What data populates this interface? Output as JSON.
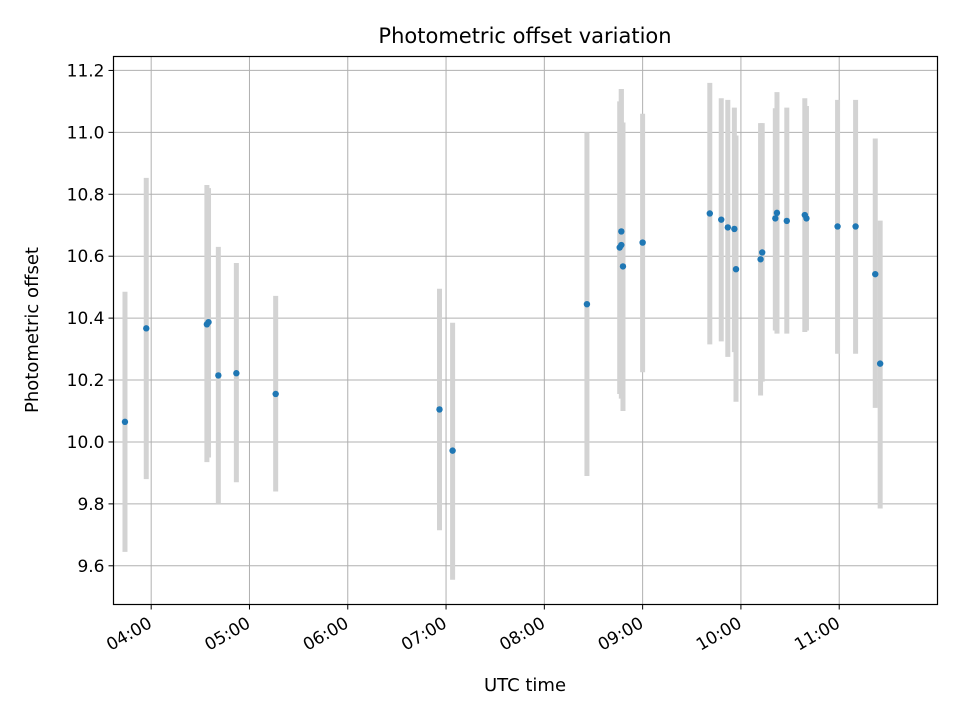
{
  "chart_data": {
    "type": "scatter",
    "title": "Photometric offset variation",
    "xlabel": "UTC time",
    "ylabel": "Photometric offset",
    "x_ticks": [
      "04:00",
      "05:00",
      "06:00",
      "07:00",
      "08:00",
      "09:00",
      "10:00",
      "11:00"
    ],
    "y_ticks": [
      "9.6",
      "9.8",
      "10.0",
      "10.2",
      "10.4",
      "10.6",
      "10.8",
      "11.0",
      "11.2"
    ],
    "xlim": [
      "03:37",
      "12:00"
    ],
    "ylim": [
      9.475,
      11.245
    ],
    "grid": true,
    "marker_color": "#1f77b4",
    "errorbar_color": "#d3d3d3",
    "points": [
      {
        "t": "03:44",
        "y": 10.065,
        "lo": 9.645,
        "hi": 10.485
      },
      {
        "t": "03:57",
        "y": 10.367,
        "lo": 9.88,
        "hi": 10.853
      },
      {
        "t": "04:34",
        "y": 10.38,
        "lo": 9.935,
        "hi": 10.83
      },
      {
        "t": "04:35",
        "y": 10.387,
        "lo": 9.95,
        "hi": 10.82
      },
      {
        "t": "04:41",
        "y": 10.215,
        "lo": 9.8,
        "hi": 10.63
      },
      {
        "t": "04:52",
        "y": 10.222,
        "lo": 9.87,
        "hi": 10.578
      },
      {
        "t": "05:16",
        "y": 10.155,
        "lo": 9.84,
        "hi": 10.472
      },
      {
        "t": "06:56",
        "y": 10.105,
        "lo": 9.715,
        "hi": 10.495
      },
      {
        "t": "07:04",
        "y": 9.972,
        "lo": 9.555,
        "hi": 10.385
      },
      {
        "t": "08:26",
        "y": 10.445,
        "lo": 9.89,
        "hi": 11.0
      },
      {
        "t": "08:46",
        "y": 10.628,
        "lo": 10.155,
        "hi": 11.1
      },
      {
        "t": "08:47",
        "y": 10.636,
        "lo": 10.14,
        "hi": 11.14
      },
      {
        "t": "08:47",
        "y": 10.68,
        "lo": 10.22,
        "hi": 11.14
      },
      {
        "t": "08:48",
        "y": 10.567,
        "lo": 10.1,
        "hi": 11.032
      },
      {
        "t": "09:00",
        "y": 10.644,
        "lo": 10.225,
        "hi": 11.06
      },
      {
        "t": "09:41",
        "y": 10.738,
        "lo": 10.315,
        "hi": 11.16
      },
      {
        "t": "09:48",
        "y": 10.718,
        "lo": 10.325,
        "hi": 11.11
      },
      {
        "t": "09:52",
        "y": 10.693,
        "lo": 10.275,
        "hi": 11.105
      },
      {
        "t": "09:56",
        "y": 10.688,
        "lo": 10.29,
        "hi": 11.08
      },
      {
        "t": "09:57",
        "y": 10.558,
        "lo": 10.13,
        "hi": 10.99
      },
      {
        "t": "10:12",
        "y": 10.59,
        "lo": 10.15,
        "hi": 11.03
      },
      {
        "t": "10:13",
        "y": 10.612,
        "lo": 10.195,
        "hi": 11.03
      },
      {
        "t": "10:21",
        "y": 10.722,
        "lo": 10.36,
        "hi": 11.078
      },
      {
        "t": "10:22",
        "y": 10.74,
        "lo": 10.35,
        "hi": 11.13
      },
      {
        "t": "10:28",
        "y": 10.714,
        "lo": 10.35,
        "hi": 11.08
      },
      {
        "t": "10:39",
        "y": 10.733,
        "lo": 10.355,
        "hi": 11.11
      },
      {
        "t": "10:40",
        "y": 10.722,
        "lo": 10.36,
        "hi": 11.085
      },
      {
        "t": "10:59",
        "y": 10.696,
        "lo": 10.285,
        "hi": 11.105
      },
      {
        "t": "11:10",
        "y": 10.696,
        "lo": 10.285,
        "hi": 11.105
      },
      {
        "t": "11:22",
        "y": 10.542,
        "lo": 10.11,
        "hi": 10.98
      },
      {
        "t": "11:25",
        "y": 10.253,
        "lo": 9.785,
        "hi": 10.715
      }
    ]
  }
}
